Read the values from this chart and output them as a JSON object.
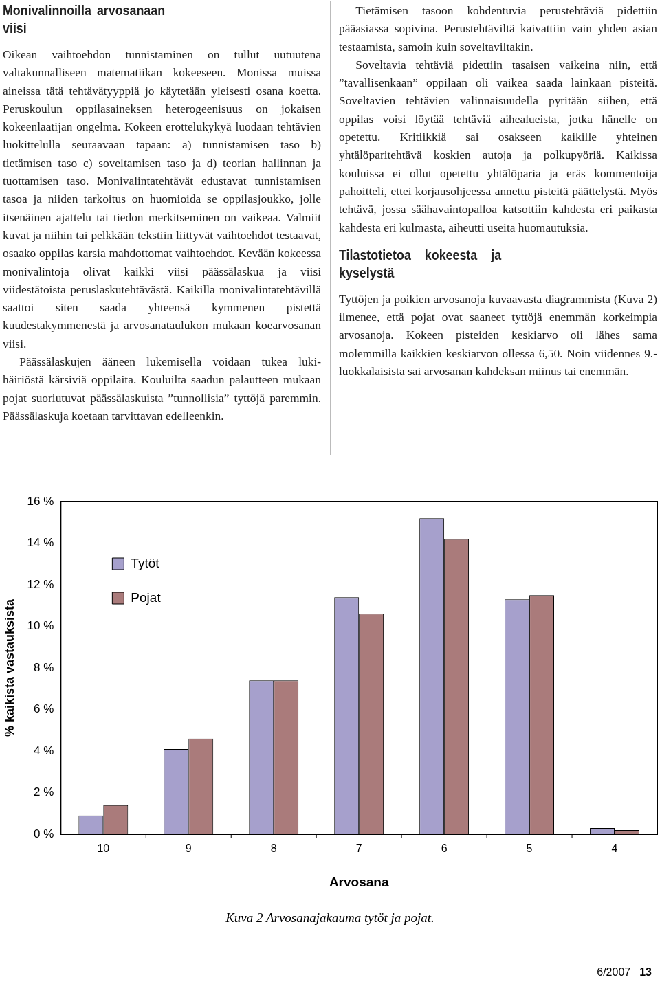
{
  "chart_data": {
    "type": "bar",
    "title": "Kuva 2 Arvosanajakauma tytöt ja pojat.",
    "xlabel": "Arvosana",
    "ylabel": "% kaikista vastauksista",
    "categories": [
      "10",
      "9",
      "8",
      "7",
      "6",
      "5",
      "4"
    ],
    "series": [
      {
        "name": "Tytöt",
        "color": "#a6a0cc",
        "values": [
          0.9,
          4.1,
          7.4,
          11.4,
          15.2,
          11.3,
          0.3
        ]
      },
      {
        "name": "Pojat",
        "color": "#aa7b7b",
        "values": [
          1.4,
          4.6,
          7.4,
          10.6,
          14.2,
          11.5,
          0.2
        ]
      }
    ],
    "ylim": [
      0,
      16
    ],
    "yticks": [
      {
        "value": 0,
        "label": "0 %"
      },
      {
        "value": 2,
        "label": "2 %"
      },
      {
        "value": 4,
        "label": "4 %"
      },
      {
        "value": 6,
        "label": "6 %"
      },
      {
        "value": 8,
        "label": "8 %"
      },
      {
        "value": 10,
        "label": "10 %"
      },
      {
        "value": 12,
        "label": "12 %"
      },
      {
        "value": 14,
        "label": "14 %"
      },
      {
        "value": 16,
        "label": "16 %"
      }
    ],
    "grid": false,
    "legend": "top left",
    "annotations": [
      "Monivalinnoilla arvosanaan viisi",
      "Oikean vaihtoehdon tunnistaminen on tullut uutuutena valtakunnalliseen matematiikan kokeeseen. Monissa muissa aineissa tätä tehtävätyyppiä jo käytetään yleisesti osana koetta. Peruskoulun oppilasaineksen heterogeenisuus on jokaisen kokeenlaatijan ongelma. Kokeen erottelukykyä luodaan tehtävien luokittelulla seuraavaan tapaan: a) tunnistamisen taso b) tietämisen taso c) soveltamisen taso ja d) teorian hallinnan ja tuottamisen taso. Monivalintatehtävät edustavat tunnistamisen tasoa ja niiden tarkoitus on huomioida se oppilasjoukko, jolle itsenäinen ajattelu tai tiedon merkitseminen on vaikeaa. Valmiit kuvat ja niihin tai pelkkään tekstiin liittyvät vaihtoehdot testaavat, osaako oppilas karsia mahdottomat vaihtoehdot. Kevään kokeessa monivalintoja olivat kaikki viisi päässälaskua ja viisi viidestätoista peruslaskutehtävästä. Kaikilla monivalintatehtävillä saattoi siten saada yhteensä kymmenen pistettä kuudestakymmenestä ja arvosanataulukon mukaan koearvosanan viisi.",
      "Päässälaskujen ääneen lukemisella voidaan tukea luki-häiriöstä kärsiviä oppilaita. Kouluilta saadun palautteen mukaan pojat suoriutuvat päässälaskuista ”tunnollisia” tyttöjä paremmin. Päässälaskuja koetaan tarvittavan edelleenkin.",
      "Tietämisen tasoon kohdentuvia perustehtäviä pidettiin pääasiassa sopivina. Perustehtäviltä kaivattiin vain yhden asian testaamista, samoin kuin soveltaviltakin.",
      "Soveltavia tehtäviä pidettiin tasaisen vaikeina niin, että ”tavallisenkaan” oppilaan oli vaikea saada lainkaan pisteitä. Soveltavien tehtävien valinnaisuudella pyritään siihen, että oppilas voisi löytää tehtäviä aihealueista, jotka hänelle on opetettu. Kritiikkiä sai osakseen kaikille yhteinen yhtälöparitehtävä koskien autoja ja polkupyöriä. Kaikissa kouluissa ei ollut opetettu yhtälöparia ja eräs kommentoija pahoitteli, ettei korjausohjeessa annettu pisteitä päättelystä. Myös tehtävä, jossa säähavaintopalloa katsottiin kahdesta eri paikasta kahdesta eri kulmasta, aiheutti useita huomautuksia.",
      "Tilastotietoa kokeesta ja kyselystä",
      "Tyttöjen ja poikien arvosanoja kuvaavasta diagrammista (Kuva 2) ilmenee, että pojat ovat saaneet tyttöjä enemmän korkeimpia arvosanoja. Kokeen pisteiden keskiarvo oli lähes sama molemmilla kaikkien keskiarvon ollessa 6,50. Noin viidennes 9.-luokkalaisista sai arvosanan kahdeksan miinus tai enemmän.",
      "6/2007",
      "13"
    ]
  }
}
